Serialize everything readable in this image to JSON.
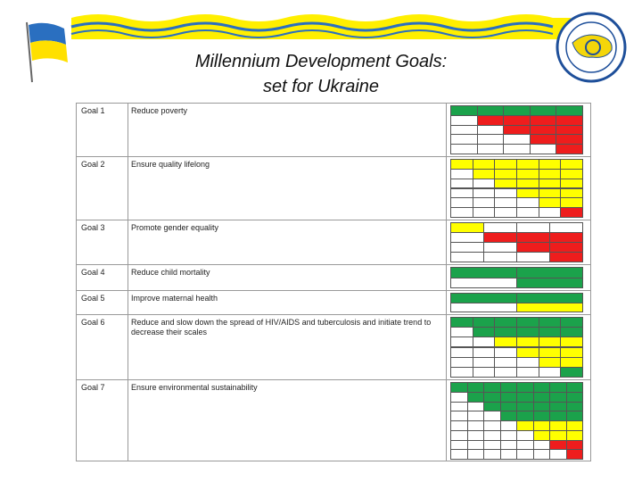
{
  "header": {
    "title_lines": [
      "Millennium Development Goals:",
      "set for Ukraine"
    ]
  },
  "palette": {
    "G": "#1ba24b",
    "R": "#ee1d1d",
    "Y": "#ffff00",
    "W": "#ffffff"
  },
  "goals": [
    {
      "goal": "Goal 1",
      "text": "Reduce poverty",
      "cells": [
        "GGGGG",
        "WRRRR",
        "WWRRR",
        "WWWRR",
        "WWWWR"
      ]
    },
    {
      "goal": "Goal 2",
      "text": "Ensure quality lifelong",
      "cells": [
        "YYYYYY",
        "WYYYYY",
        "WWYYYY",
        "WWWYYY",
        "WWWWYY",
        "WWWWWR"
      ]
    },
    {
      "goal": "Goal 3",
      "text": "Promote gender equality",
      "cells": [
        "YWWW",
        "WRRR",
        "WWRR",
        "WWWR"
      ]
    },
    {
      "goal": "Goal 4",
      "text": "Reduce child mortality",
      "cells": [
        "GG",
        "WG"
      ]
    },
    {
      "goal": "Goal 5",
      "text": "Improve maternal health",
      "cells": [
        "GG",
        "WY"
      ]
    },
    {
      "goal": "Goal 6",
      "text": "Reduce and slow down the spread of HIV/AIDS and tuberculosis and initiate trend to decrease their scales",
      "cells": [
        "GGGGGG",
        "WGGGGG",
        "WWYYYY",
        "WWWYYY",
        "WWWWYY",
        "WWWWWG"
      ]
    },
    {
      "goal": "Goal 7",
      "text": "Ensure environmental sustainability",
      "cells": [
        "GGGGGGGG",
        "WGGGGGGG",
        "WWGGGGGG",
        "WWWGGGGG",
        "WWWWYYYY",
        "WWWWWYYY",
        "WWWWWWRR",
        "WWWWWWWR"
      ]
    }
  ]
}
